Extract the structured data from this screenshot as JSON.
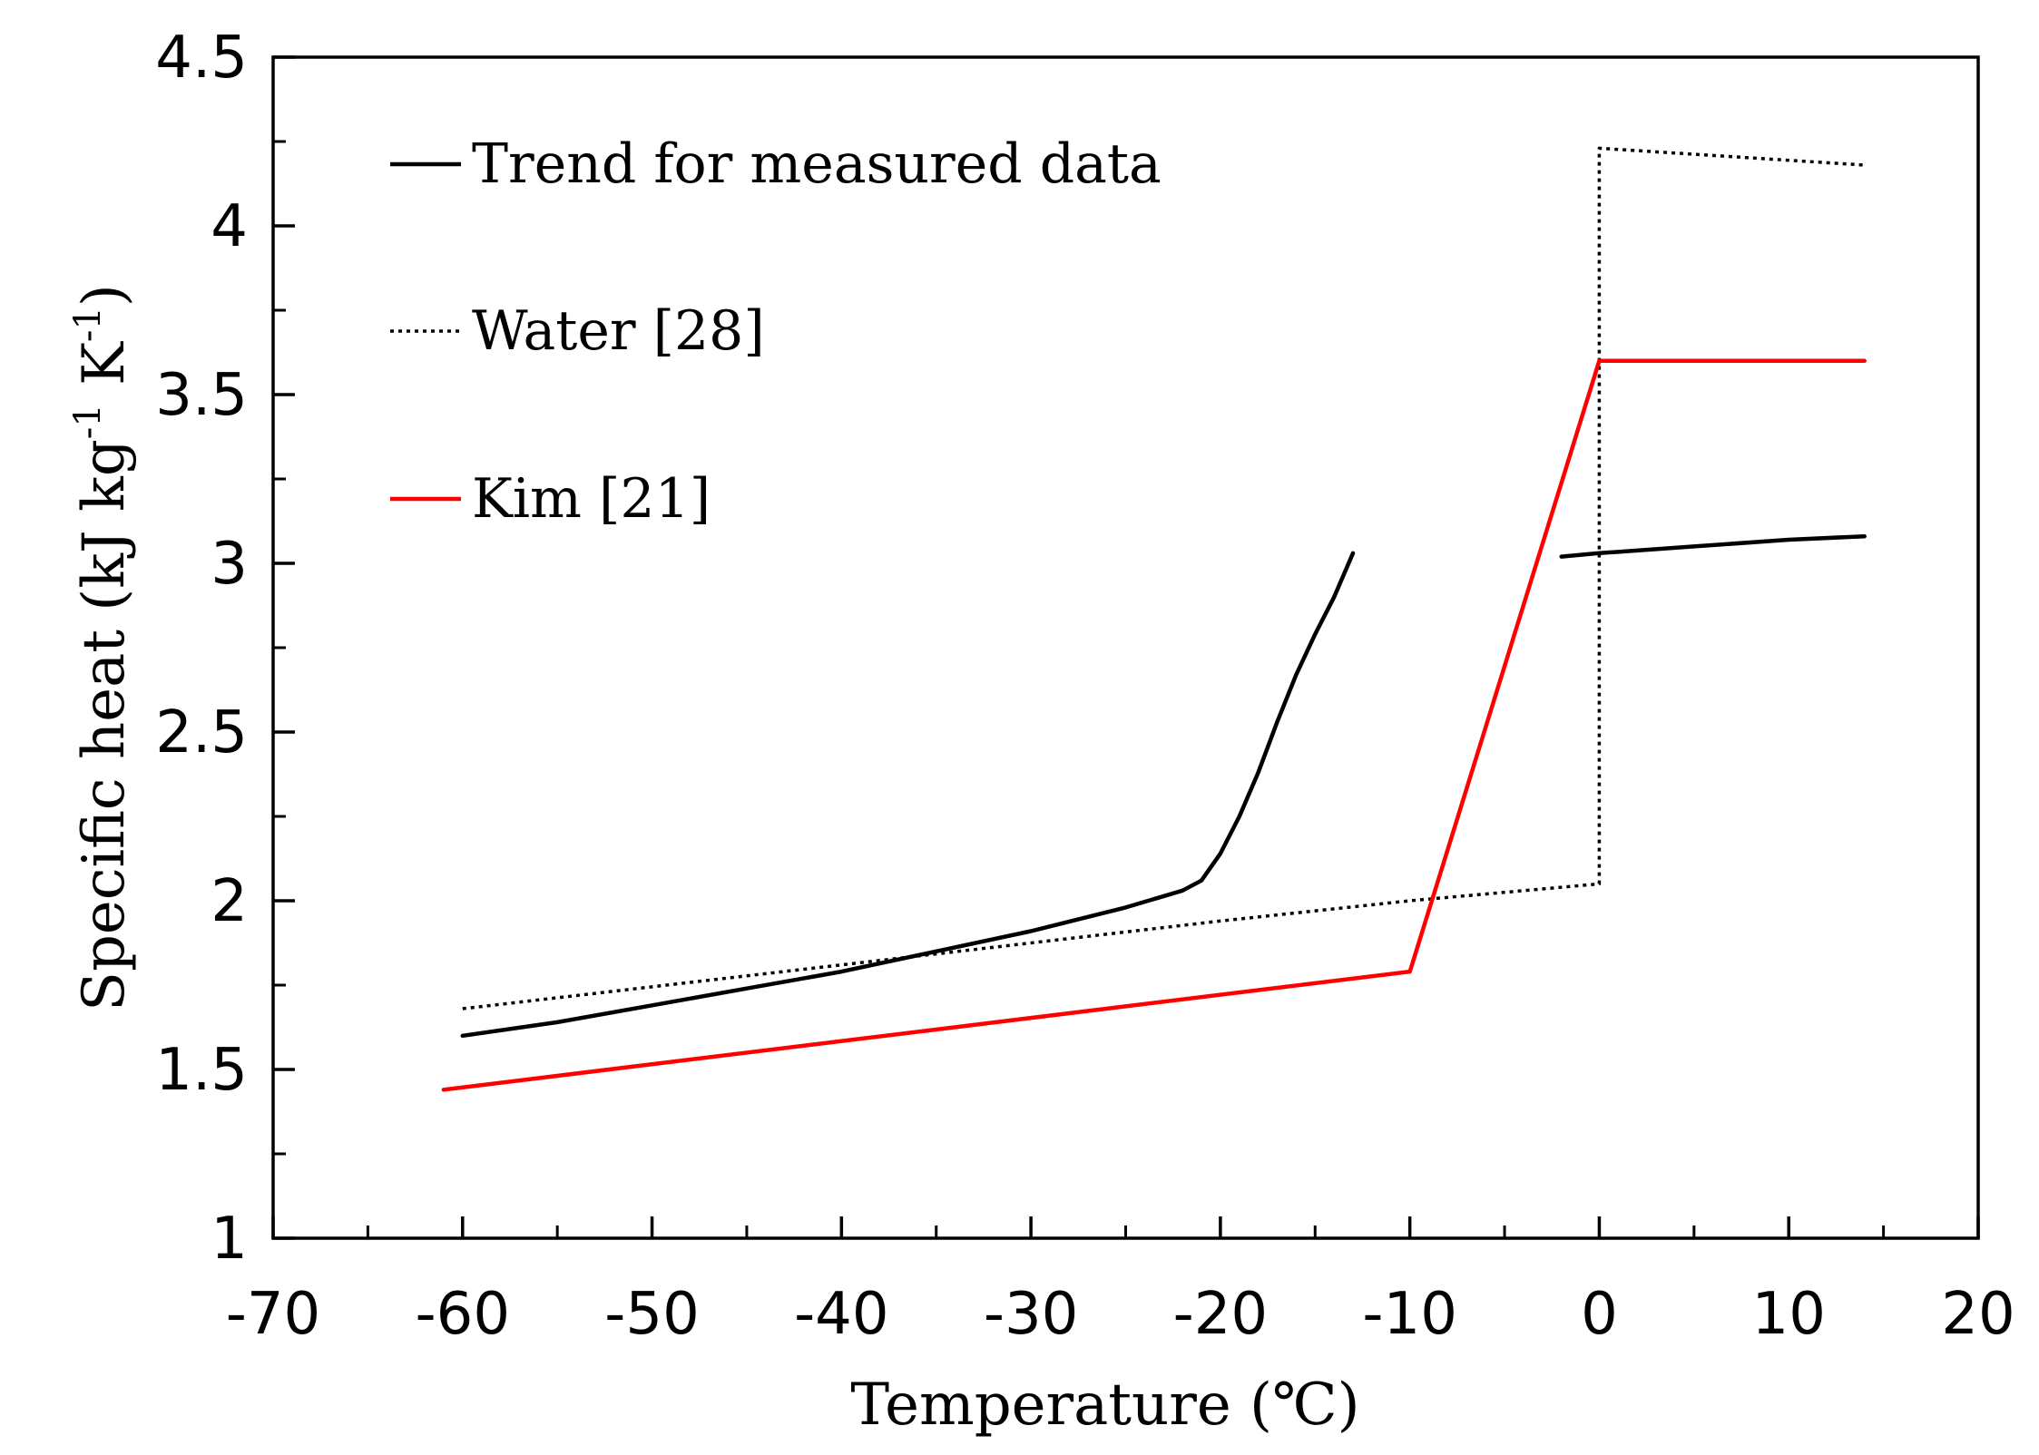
{
  "chart_data": {
    "type": "line",
    "title": "",
    "xlabel": "Temperature (℃)",
    "ylabel": {
      "main": "Specific heat (kJ kg",
      "sup1": "-1",
      "mid": " K",
      "sup2": "-1",
      "end": ")"
    },
    "xlim": [
      -70,
      20
    ],
    "ylim": [
      1,
      4.5
    ],
    "x_ticks": [
      -70,
      -60,
      -50,
      -40,
      -30,
      -20,
      -10,
      0,
      10,
      20
    ],
    "x_tick_labels": [
      "-70",
      "-60",
      "-50",
      "-40",
      "-30",
      "-20",
      "-10",
      "0",
      "10",
      "20"
    ],
    "y_ticks": [
      1,
      1.5,
      2,
      2.5,
      3,
      3.5,
      4,
      4.5
    ],
    "y_tick_labels": [
      "1",
      "1.5",
      "2",
      "2.5",
      "3",
      "3.5",
      "4",
      "4.5"
    ],
    "legend_position": "top-left",
    "series": [
      {
        "name": "Trend for measured data",
        "color": "#000000",
        "style": "solid",
        "segments": [
          [
            [
              -60,
              1.6
            ],
            [
              -55,
              1.64
            ],
            [
              -50,
              1.69
            ],
            [
              -45,
              1.74
            ],
            [
              -40,
              1.79
            ],
            [
              -35,
              1.85
            ],
            [
              -30,
              1.91
            ],
            [
              -25,
              1.98
            ],
            [
              -22,
              2.03
            ],
            [
              -21,
              2.06
            ],
            [
              -20,
              2.14
            ],
            [
              -19,
              2.25
            ],
            [
              -18,
              2.38
            ],
            [
              -17,
              2.53
            ],
            [
              -16,
              2.67
            ],
            [
              -15,
              2.79
            ],
            [
              -14,
              2.9
            ],
            [
              -13,
              3.03
            ]
          ],
          [
            [
              -2,
              3.02
            ],
            [
              0,
              3.03
            ],
            [
              5,
              3.05
            ],
            [
              10,
              3.07
            ],
            [
              14,
              3.08
            ]
          ]
        ]
      },
      {
        "name": "Water [28]",
        "color": "#000000",
        "style": "dotted",
        "segments": [
          [
            [
              -60,
              1.68
            ],
            [
              -40,
              1.81
            ],
            [
              -20,
              1.94
            ],
            [
              -10,
              2.0
            ],
            [
              0,
              2.05
            ],
            [
              0,
              4.23
            ],
            [
              14,
              4.18
            ]
          ]
        ]
      },
      {
        "name": "Kim [21]",
        "color": "#ff0000",
        "style": "solid",
        "segments": [
          [
            [
              -61,
              1.44
            ],
            [
              -10,
              1.79
            ],
            [
              0,
              3.6
            ],
            [
              14,
              3.6
            ]
          ]
        ]
      }
    ]
  }
}
